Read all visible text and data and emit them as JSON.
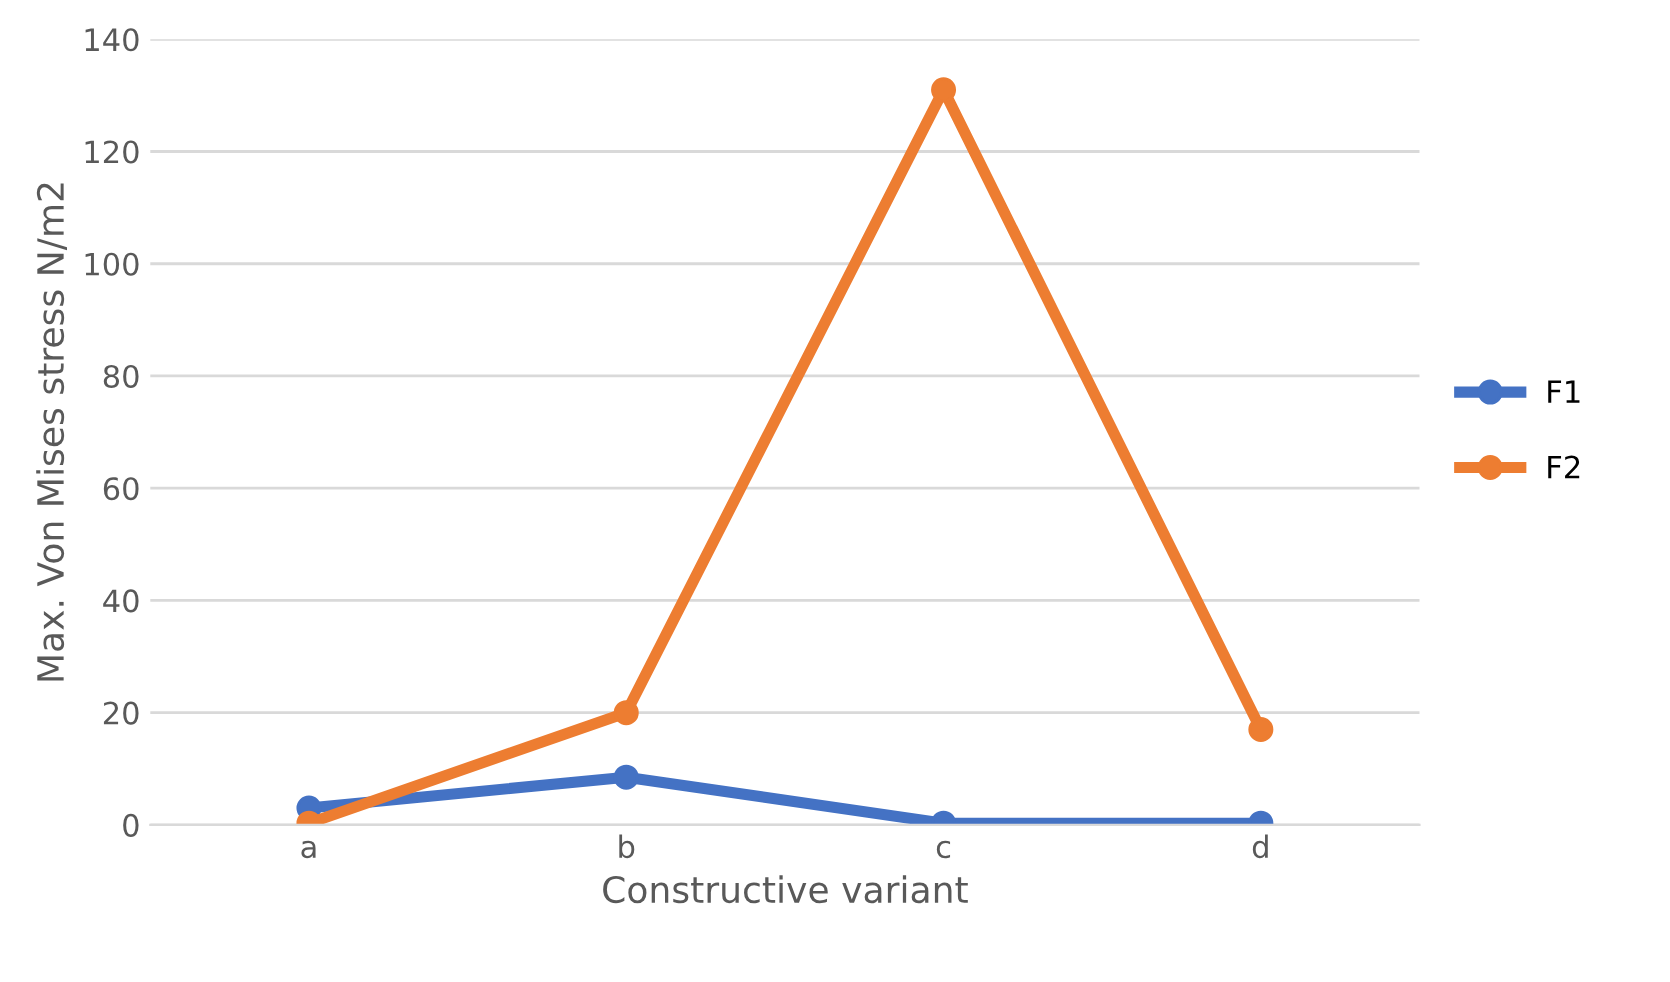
{
  "chart_data": {
    "type": "line",
    "xlabel": "Constructive variant",
    "ylabel": "Max. Von Mises stress N/m2",
    "categories": [
      "a",
      "b",
      "c",
      "d"
    ],
    "series": [
      {
        "name": "F1",
        "color": "#4472c4",
        "values": [
          3,
          8.5,
          0.3,
          0.3
        ]
      },
      {
        "name": "F2",
        "color": "#ed7d31",
        "values": [
          0.3,
          20,
          131,
          17
        ]
      }
    ],
    "ylim": [
      0,
      140
    ],
    "yticks": [
      0,
      20,
      40,
      60,
      80,
      100,
      120,
      140
    ],
    "grid": "y",
    "legend": "right",
    "marker": "circle",
    "line_style": "solid"
  }
}
